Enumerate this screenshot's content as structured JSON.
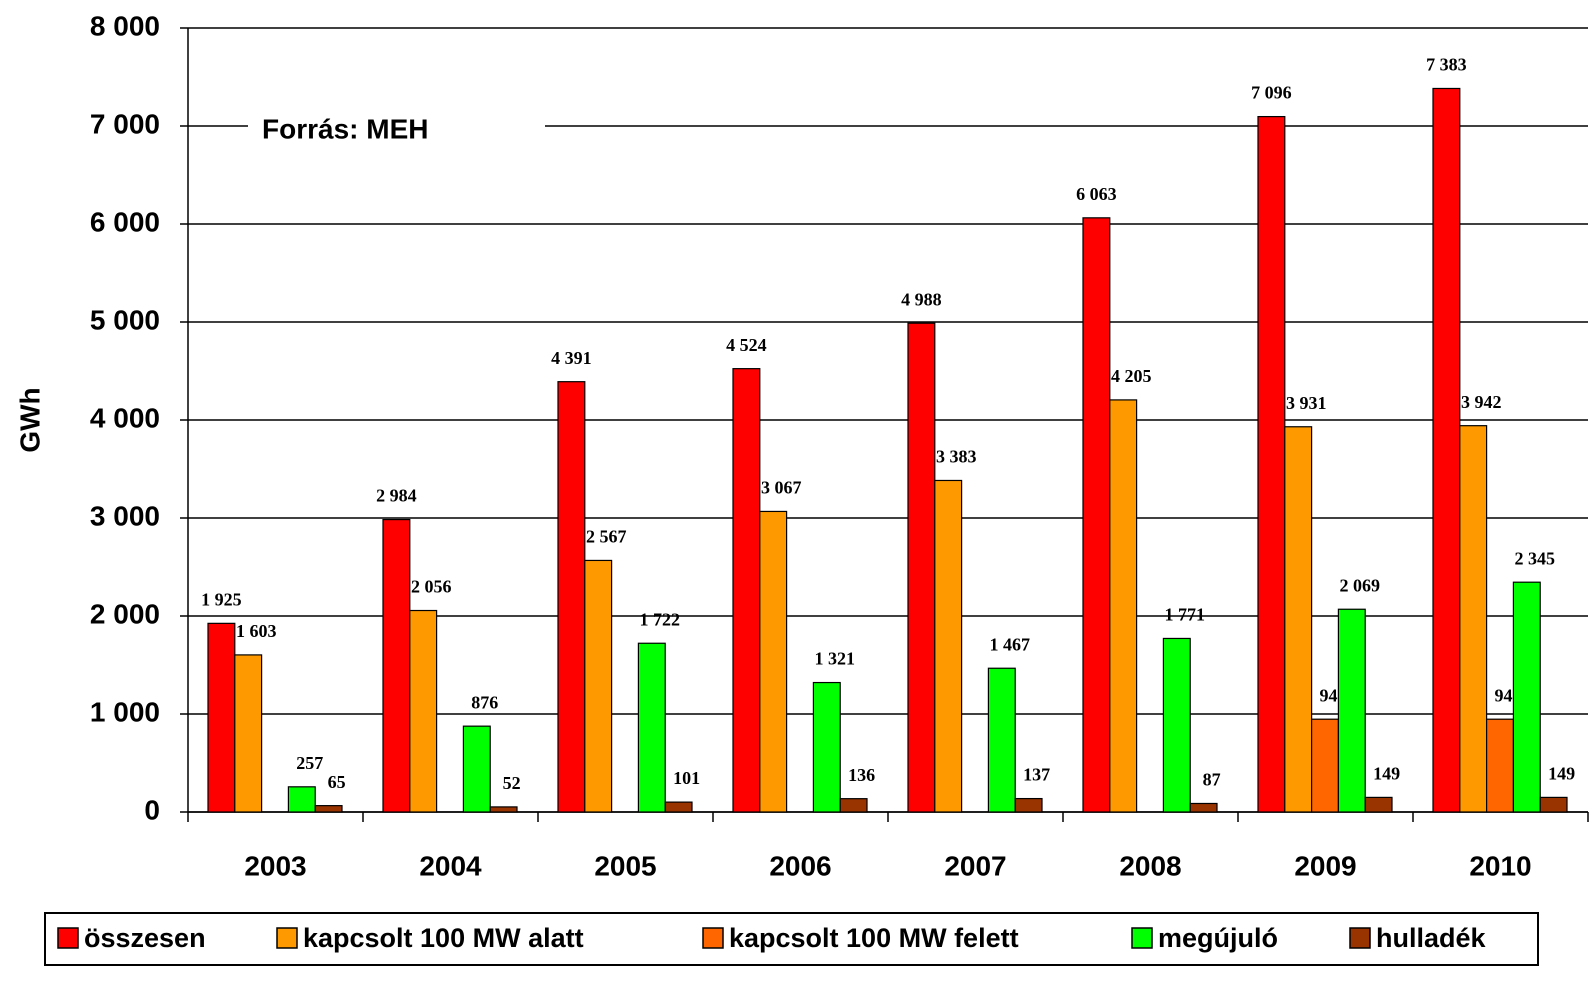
{
  "chart_data": {
    "type": "bar",
    "y_label": "GWh",
    "annotation": "Forrás: MEH",
    "categories": [
      "2003",
      "2004",
      "2005",
      "2006",
      "2007",
      "2008",
      "2009",
      "2010"
    ],
    "series": [
      {
        "name": "összesen",
        "color": "#ff0000",
        "values": [
          1925,
          2984,
          4391,
          4524,
          4988,
          6063,
          7096,
          7383
        ],
        "value_labels": [
          "1 925",
          "2 984",
          "4 391",
          "4 524",
          "4 988",
          "6 063",
          "7 096",
          "7 383"
        ]
      },
      {
        "name": "kapcsolt 100 MW alatt",
        "color": "#ff9900",
        "values": [
          1603,
          2056,
          2567,
          3067,
          3383,
          4205,
          3931,
          3942
        ],
        "value_labels": [
          "1 603",
          "2 056",
          "2 567",
          "3 067",
          "3 383",
          "4 205",
          "3 931",
          "3 942"
        ]
      },
      {
        "name": "kapcsolt 100 MW felett",
        "color": "#ff6600",
        "values": [
          null,
          null,
          null,
          null,
          null,
          null,
          947,
          947
        ]
      },
      {
        "name": "megújuló",
        "color": "#00ff00",
        "values": [
          257,
          876,
          1722,
          1321,
          1467,
          1771,
          2069,
          2345
        ],
        "value_labels": [
          "257",
          "876",
          "1 722",
          "1 321",
          "1 467",
          "1 771",
          "2 069",
          "2 345"
        ]
      },
      {
        "name": "hulladék",
        "color": "#993300",
        "values": [
          65,
          52,
          101,
          136,
          137,
          87,
          149,
          149
        ]
      }
    ],
    "ylim": [
      0,
      8000
    ],
    "yticks": [
      0,
      {
        "value": 1000,
        "label": "1 000"
      },
      {
        "value": 2000,
        "label": "2 000"
      },
      {
        "value": 3000,
        "label": "3 000"
      },
      {
        "value": 4000,
        "label": "4 000"
      },
      {
        "value": 5000,
        "label": "5 000"
      },
      {
        "value": 6000,
        "label": "6 000"
      },
      {
        "value": 7000,
        "label": "7 000"
      },
      {
        "value": 8000,
        "label": "8 000"
      }
    ],
    "grid": true
  }
}
